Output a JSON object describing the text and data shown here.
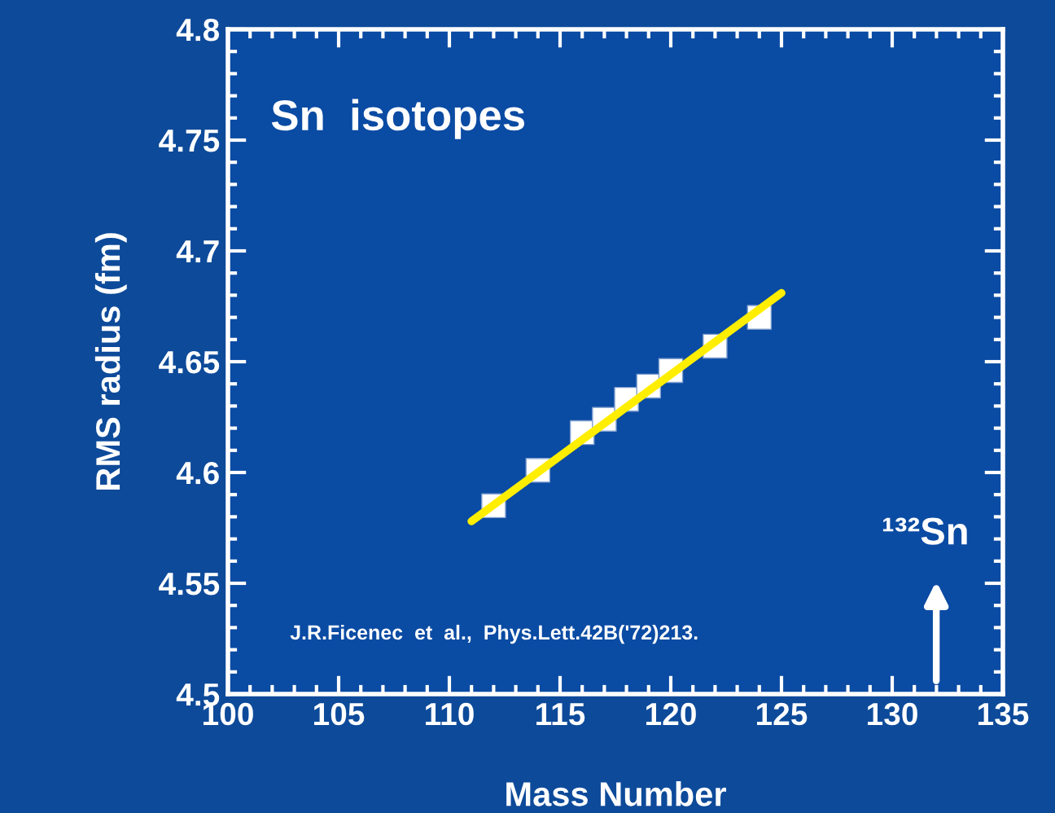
{
  "chart_data": {
    "type": "scatter",
    "xlabel": "Mass Number",
    "ylabel": "RMS radius (fm)",
    "xlim": [
      100,
      135
    ],
    "xticks": [
      100,
      105,
      110,
      115,
      120,
      125,
      130,
      135
    ],
    "ylim": [
      4.5,
      4.8
    ],
    "yticks": [
      4.5,
      4.55,
      4.6,
      4.65,
      4.7,
      4.75,
      4.8
    ],
    "grid": false,
    "series": [
      {
        "marker": "square",
        "color": "#ffffff",
        "x": [
          112,
          114,
          116,
          117,
          118,
          119,
          120,
          122,
          124
        ],
        "values": [
          4.585,
          4.601,
          4.618,
          4.624,
          4.633,
          4.639,
          4.646,
          4.657,
          4.67
        ]
      },
      {
        "type": "line",
        "marker": "none",
        "color": "#ffee00",
        "x": [
          111,
          125
        ],
        "values": [
          4.578,
          4.681
        ]
      }
    ],
    "annotations": [
      "Sn  isotopes",
      "J.R.Ficenec  et  al.,  Phys.Lett.42B('72)213.",
      "¹³²Sn"
    ]
  }
}
